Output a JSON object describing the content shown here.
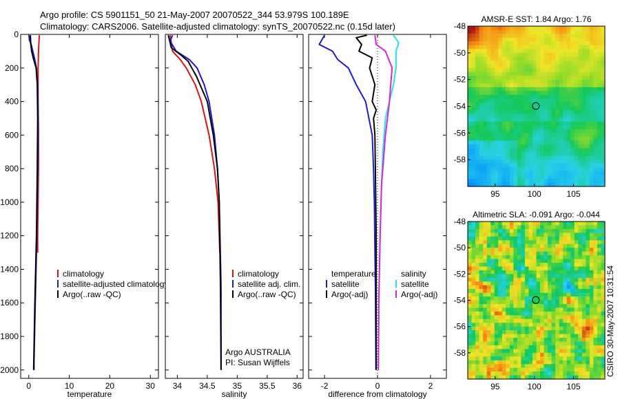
{
  "figure": {
    "title_line1": "Argo profile: CS 5901151_50 21-May-2007 20070522_344 53.979S 100.189E",
    "title_line2": "Climatology: CARS2006. Satellite-adjusted climatology: synTS_20070522.nc (0.15d later)",
    "credit": "CSIRO 30-May-2007 10:31:54"
  },
  "colors": {
    "climatology": "#e01010",
    "satellite": "#1a1ad6",
    "argo": "#000000",
    "sal_satellite": "#22e6e6",
    "sal_argo": "#e020e0"
  },
  "chart_data": [
    {
      "id": "temperature",
      "type": "line",
      "xlabel": "temperature",
      "xlim": [
        -2,
        32
      ],
      "ylim": [
        2050,
        0
      ],
      "xticks": [
        0,
        10,
        20,
        30
      ],
      "yticks": [
        0,
        200,
        400,
        600,
        800,
        1000,
        1200,
        1400,
        1600,
        1800,
        2000
      ],
      "legend": [
        "climatology",
        "satellite-adjusted climatology",
        "Argo(..raw -QC)"
      ],
      "series": [
        {
          "name": "climatology",
          "color": "climatology",
          "depth": [
            5,
            50,
            100,
            200,
            400,
            600,
            800,
            1000,
            1200,
            1300
          ],
          "values": [
            2.6,
            2.5,
            2.4,
            2.3,
            2.3,
            2.4,
            2.4,
            2.3,
            2.2,
            2.2
          ]
        },
        {
          "name": "satellite-adjusted climatology",
          "color": "satellite",
          "depth": [
            5,
            30,
            60,
            100,
            140,
            200,
            300,
            500,
            800,
            1200,
            1600,
            1950,
            2000
          ],
          "values": [
            0.3,
            0.1,
            0.6,
            1.0,
            1.4,
            1.9,
            2.2,
            2.3,
            2.2,
            2.0,
            1.6,
            1.3,
            1.3
          ]
        },
        {
          "name": "Argo(..raw -QC)",
          "color": "argo",
          "depth": [
            5,
            60,
            100,
            140,
            200,
            300,
            500,
            800,
            1200,
            1600,
            2000
          ],
          "values": [
            0.4,
            0.5,
            0.7,
            1.1,
            1.8,
            2.1,
            2.2,
            2.1,
            1.9,
            1.5,
            1.2
          ]
        }
      ]
    },
    {
      "id": "salinity",
      "type": "line",
      "xlabel": "salinity",
      "xlim": [
        33.8,
        36.1
      ],
      "ylim": [
        2050,
        0
      ],
      "xticks": [
        34,
        34.5,
        35,
        35.5,
        36
      ],
      "legend": [
        "climatology",
        "satellite adj. clim.",
        "Argo(..raw -QC)"
      ],
      "annotation": [
        "Argo AUSTRALIA",
        "PI: Susan Wijffels"
      ],
      "series": [
        {
          "name": "climatology",
          "color": "climatology",
          "depth": [
            5,
            100,
            150,
            200,
            300,
            400,
            600,
            800,
            1000,
            1300
          ],
          "values": [
            33.88,
            33.92,
            34.05,
            34.15,
            34.3,
            34.4,
            34.53,
            34.62,
            34.68,
            34.71
          ]
        },
        {
          "name": "satellite adj. clim.",
          "color": "satellite",
          "depth": [
            5,
            40,
            100,
            150,
            200,
            300,
            400,
            600,
            800,
            1000,
            1500,
            2000
          ],
          "values": [
            33.92,
            33.88,
            33.98,
            34.2,
            34.33,
            34.45,
            34.53,
            34.62,
            34.67,
            34.7,
            34.73,
            34.73
          ]
        },
        {
          "name": "Argo(..raw -QC)",
          "color": "argo",
          "depth": [
            5,
            80,
            120,
            160,
            250,
            400,
            600,
            800,
            1000,
            1500,
            2000
          ],
          "values": [
            33.85,
            33.9,
            34.05,
            34.18,
            34.32,
            34.5,
            34.6,
            34.67,
            34.7,
            34.72,
            34.73
          ]
        }
      ]
    },
    {
      "id": "difference",
      "type": "line",
      "xlabel": "difference from climatology",
      "xlim": [
        -2.6,
        2.6
      ],
      "ylim": [
        2050,
        0
      ],
      "xticks": [
        -2,
        0,
        2
      ],
      "zero_line": 0,
      "legend_temperature": {
        "title": "temperature",
        "items": [
          "satellite",
          "Argo(-adj)"
        ]
      },
      "legend_salinity": {
        "title": "salinity",
        "items": [
          "satellite",
          "Argo(-adj)"
        ]
      },
      "series": [
        {
          "name": "temperature satellite",
          "color": "satellite",
          "depth": [
            5,
            60,
            100,
            150,
            200,
            300,
            400,
            600,
            800,
            1000,
            1500,
            2000
          ],
          "values": [
            -2.0,
            -2.2,
            -1.7,
            -1.5,
            -1.1,
            -0.8,
            -0.45,
            -0.2,
            -0.15,
            -0.12,
            -0.08,
            -0.06
          ]
        },
        {
          "name": "temperature Argo(-adj)",
          "color": "argo",
          "depth": [
            5,
            20,
            60,
            100,
            140,
            200,
            300,
            400,
            450,
            500,
            600,
            800,
            1200,
            2000
          ],
          "values": [
            -0.4,
            -0.8,
            -0.6,
            -0.7,
            -0.2,
            -0.3,
            -0.1,
            -0.2,
            -0.05,
            -0.15,
            -0.1,
            -0.08,
            -0.05,
            -0.05
          ]
        },
        {
          "name": "salinity satellite",
          "color": "sal_satellite",
          "depth": [
            5,
            50,
            100,
            200,
            300,
            400,
            500,
            700,
            900,
            1200,
            1600,
            2000
          ],
          "values": [
            0.6,
            0.8,
            0.7,
            0.7,
            0.6,
            0.45,
            0.3,
            0.2,
            0.15,
            0.1,
            0.05,
            0.03
          ]
        },
        {
          "name": "salinity Argo(-adj)",
          "color": "sal_argo",
          "depth": [
            5,
            60,
            100,
            200,
            300,
            400,
            600,
            900,
            1200,
            1600,
            2000
          ],
          "values": [
            -0.1,
            -0.05,
            0.3,
            0.55,
            0.5,
            0.45,
            0.3,
            0.15,
            0.1,
            0.05,
            0.03
          ]
        }
      ]
    },
    {
      "id": "sst_map",
      "type": "heatmap",
      "title": "AMSR-E SST: 1.84 Argo: 1.76",
      "xlim": [
        91.5,
        109
      ],
      "ylim": [
        -60,
        -48
      ],
      "xticks": [
        95,
        100,
        105
      ],
      "yticks": [
        -48,
        -50,
        -52,
        -54,
        -56,
        -58
      ],
      "marker": {
        "lon": 100.19,
        "lat": -53.98
      }
    },
    {
      "id": "sla_map",
      "type": "heatmap",
      "title": "Altimetric SLA: -0.091 Argo: -0.044",
      "xlim": [
        91.5,
        109
      ],
      "ylim": [
        -60,
        -48
      ],
      "xticks": [
        95,
        100,
        105
      ],
      "yticks": [
        -48,
        -50,
        -52,
        -54,
        -56,
        -58
      ],
      "marker": {
        "lon": 100.19,
        "lat": -53.98
      }
    }
  ]
}
